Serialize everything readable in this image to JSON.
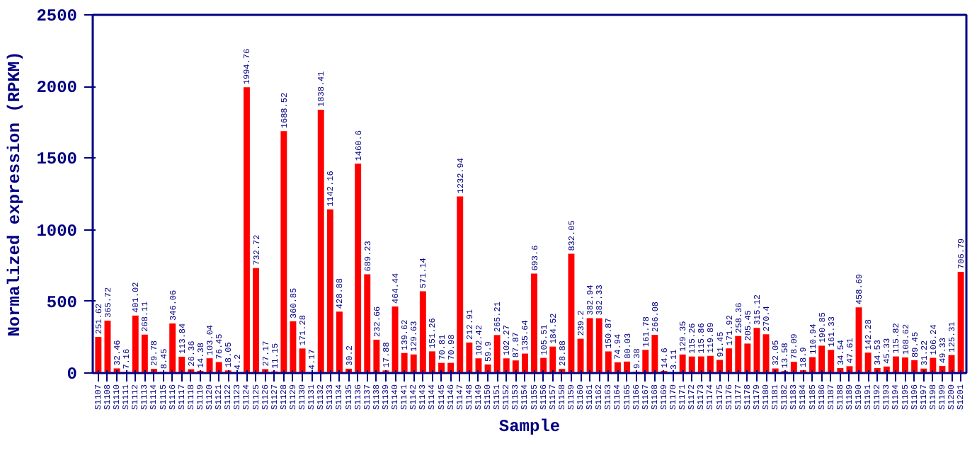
{
  "chart_data": {
    "type": "bar",
    "xlabel": "Sample",
    "ylabel": "Normalized expression (RPKM)",
    "categories": [
      "S1107",
      "S1108",
      "S1110",
      "S1111",
      "S1112",
      "S1113",
      "S1114",
      "S1115",
      "S1116",
      "S1117",
      "S1118",
      "S1119",
      "S1120",
      "S1121",
      "S1122",
      "S1123",
      "S1124",
      "S1125",
      "S1126",
      "S1127",
      "S1128",
      "S1129",
      "S1130",
      "S1131",
      "S1132",
      "S1133",
      "S1134",
      "S1135",
      "S1136",
      "S1137",
      "S1138",
      "S1139",
      "S1140",
      "S1141",
      "S1142",
      "S1143",
      "S1144",
      "S1145",
      "S1146",
      "S1147",
      "S1148",
      "S1149",
      "S1150",
      "S1151",
      "S1152",
      "S1153",
      "S1154",
      "S1155",
      "S1156",
      "S1157",
      "S1158",
      "S1159",
      "S1160",
      "S1161",
      "S1162",
      "S1163",
      "S1164",
      "S1165",
      "S1166",
      "S1167",
      "S1168",
      "S1169",
      "S1170",
      "S1171",
      "S1172",
      "S1173",
      "S1174",
      "S1175",
      "S1176",
      "S1177",
      "S1178",
      "S1179",
      "S1180",
      "S1181",
      "S1182",
      "S1183",
      "S1184",
      "S1185",
      "S1186",
      "S1187",
      "S1188",
      "S1189",
      "S1190",
      "S1191",
      "S1192",
      "S1193",
      "S1194",
      "S1195",
      "S1196",
      "S1197",
      "S1198",
      "S1199",
      "S1200",
      "S1201"
    ],
    "values": [
      251.62,
      365.72,
      32.46,
      7.16,
      401.02,
      268.11,
      29.78,
      8.45,
      346.06,
      113.84,
      26.36,
      14.38,
      103.04,
      76.45,
      18.05,
      4.2,
      1994.76,
      732.72,
      27.17,
      11.15,
      1688.52,
      360.85,
      171.28,
      4.17,
      1838.41,
      1142.16,
      428.88,
      30.2,
      1460.6,
      689.23,
      232.66,
      17.88,
      464.44,
      139.62,
      129.63,
      571.14,
      151.26,
      70.81,
      70.98,
      1232.94,
      212.91,
      102.42,
      59.9,
      265.21,
      102.27,
      87.87,
      135.64,
      693.6,
      105.51,
      184.52,
      28.88,
      832.05,
      239.2,
      382.94,
      382.33,
      150.87,
      74.94,
      80.03,
      9.38,
      161.78,
      266.08,
      14.6,
      3.11,
      129.35,
      115.26,
      115.86,
      119.89,
      91.45,
      171.92,
      258.36,
      205.45,
      315.12,
      270.4,
      32.05,
      13.58,
      78.09,
      18.9,
      110.94,
      190.85,
      161.33,
      34.54,
      47.61,
      458.69,
      142.28,
      34.53,
      45.33,
      115.82,
      108.62,
      89.45,
      31.22,
      106.24,
      49.33,
      125.31,
      706.79
    ],
    "color": "#ff0000",
    "ylim": [
      0,
      2500
    ],
    "yticks": [
      0,
      500,
      1000,
      1500,
      2000,
      2500
    ],
    "grid": false,
    "data_labels": true
  }
}
